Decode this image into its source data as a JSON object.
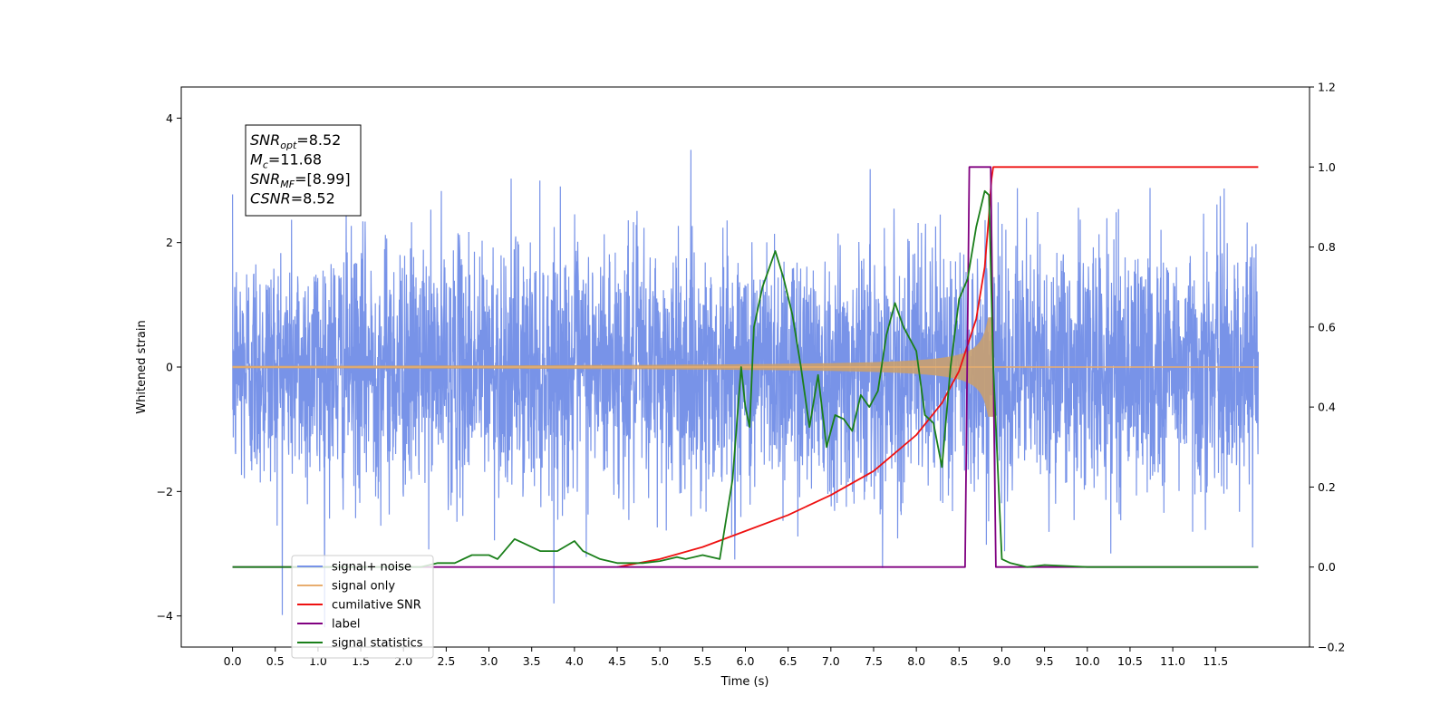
{
  "chart_data": {
    "type": "line",
    "xlabel": "Time (s)",
    "ylabel_left": "Whitened strain",
    "ylabel_right": "",
    "xlim": [
      -0.6,
      12.6
    ],
    "ylim_left": [
      -4.5,
      4.5
    ],
    "ylim_right": [
      -0.2,
      1.2
    ],
    "x_ticks": [
      "0.0",
      "0.5",
      "1.0",
      "1.5",
      "2.0",
      "2.5",
      "3.0",
      "3.5",
      "4.0",
      "4.5",
      "5.0",
      "5.5",
      "6.0",
      "6.5",
      "7.0",
      "7.5",
      "8.0",
      "8.5",
      "9.0",
      "9.5",
      "10.0",
      "10.5",
      "11.0",
      "11.5"
    ],
    "y_ticks_left": [
      "4",
      "2",
      "0",
      "−2",
      "−4"
    ],
    "y_ticks_right": [
      "1.2",
      "1.0",
      "0.8",
      "0.6",
      "0.4",
      "0.2",
      "0.0",
      "−0.2"
    ],
    "grid": false,
    "legend_position": "lower-left",
    "annotation": {
      "lines": [
        {
          "sym": "SNR",
          "sub": "opt",
          "value": "=8.52"
        },
        {
          "sym": "M",
          "sub": "c",
          "value": "=11.68"
        },
        {
          "sym": "SNR",
          "sub": "MF",
          "value": "=[8.99]"
        },
        {
          "sym": "CSNR",
          "sub": "",
          "value": "=8.52"
        }
      ]
    },
    "series": [
      {
        "name": "signal+ noise",
        "color": "#7893e8",
        "axis": "left",
        "kind": "noise",
        "amplitude_std": 1.0,
        "x_range": [
          0,
          12
        ]
      },
      {
        "name": "signal only",
        "color": "#e8ad6f",
        "axis": "left",
        "kind": "chirp",
        "merger_time": 8.9,
        "peak_amplitude": 0.8,
        "x_range": [
          0,
          12
        ]
      },
      {
        "name": "cumilative SNR",
        "color": "#ee1111",
        "axis": "right",
        "x": [
          4.5,
          5.0,
          5.5,
          6.0,
          6.5,
          7.0,
          7.5,
          8.0,
          8.3,
          8.5,
          8.7,
          8.8,
          8.85,
          8.88,
          8.9,
          9.5,
          10.0,
          11.0,
          12.0
        ],
        "y": [
          0.0,
          0.02,
          0.05,
          0.09,
          0.13,
          0.18,
          0.24,
          0.33,
          0.41,
          0.49,
          0.62,
          0.75,
          0.88,
          0.97,
          1.0,
          1.0,
          1.0,
          1.0,
          1.0
        ]
      },
      {
        "name": "label",
        "color": "#800080",
        "axis": "right",
        "x": [
          0.0,
          8.57,
          8.62,
          8.87,
          8.93,
          12.0
        ],
        "y": [
          0.0,
          0.0,
          1.0,
          1.0,
          0.0,
          0.0
        ]
      },
      {
        "name": "signal statistics",
        "color": "#1a7f1a",
        "axis": "right",
        "x": [
          0.0,
          2.2,
          2.4,
          2.6,
          2.8,
          3.0,
          3.1,
          3.3,
          3.4,
          3.6,
          3.8,
          4.0,
          4.1,
          4.3,
          4.5,
          4.8,
          5.0,
          5.2,
          5.3,
          5.5,
          5.7,
          5.85,
          5.95,
          6.0,
          6.05,
          6.1,
          6.2,
          6.3,
          6.35,
          6.45,
          6.55,
          6.65,
          6.75,
          6.85,
          6.95,
          7.05,
          7.15,
          7.25,
          7.35,
          7.45,
          7.55,
          7.65,
          7.75,
          7.85,
          8.0,
          8.1,
          8.2,
          8.3,
          8.4,
          8.5,
          8.6,
          8.7,
          8.8,
          8.85,
          8.9,
          9.0,
          9.1,
          9.3,
          9.5,
          10.0,
          12.0
        ],
        "y": [
          0.0,
          0.0,
          0.01,
          0.01,
          0.03,
          0.03,
          0.02,
          0.07,
          0.06,
          0.04,
          0.04,
          0.065,
          0.04,
          0.02,
          0.01,
          0.01,
          0.015,
          0.025,
          0.02,
          0.03,
          0.02,
          0.22,
          0.5,
          0.4,
          0.35,
          0.6,
          0.7,
          0.76,
          0.79,
          0.72,
          0.63,
          0.5,
          0.35,
          0.48,
          0.3,
          0.38,
          0.37,
          0.34,
          0.43,
          0.4,
          0.44,
          0.58,
          0.66,
          0.6,
          0.54,
          0.38,
          0.36,
          0.25,
          0.5,
          0.67,
          0.72,
          0.85,
          0.94,
          0.93,
          0.5,
          0.02,
          0.01,
          0.0,
          0.005,
          0.0,
          0.0
        ]
      }
    ]
  }
}
